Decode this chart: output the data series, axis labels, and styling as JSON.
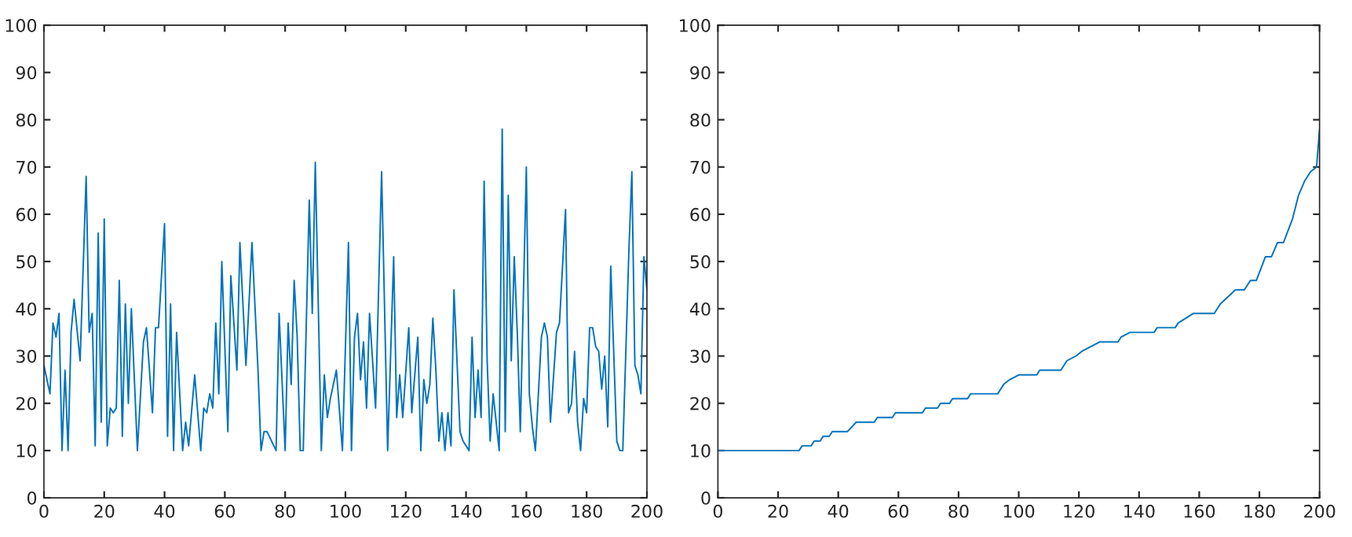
{
  "chart_data": [
    {
      "type": "line",
      "color": "#0072bd",
      "xlim": [
        0,
        200
      ],
      "ylim": [
        0,
        100
      ],
      "xticks": [
        0,
        20,
        40,
        60,
        80,
        100,
        120,
        140,
        160,
        180,
        200
      ],
      "yticks": [
        0,
        10,
        20,
        30,
        40,
        50,
        60,
        70,
        80,
        90,
        100
      ],
      "x": [
        0,
        2,
        3,
        4,
        5,
        6,
        7,
        8,
        9,
        10,
        12,
        14,
        15,
        16,
        17,
        18,
        19,
        20,
        21,
        22,
        23,
        24,
        25,
        26,
        27,
        28,
        29,
        31,
        33,
        34,
        36,
        37,
        38,
        40,
        41,
        42,
        43,
        44,
        46,
        47,
        48,
        50,
        52,
        53,
        54,
        55,
        56,
        57,
        58,
        59,
        61,
        62,
        64,
        65,
        67,
        69,
        71,
        72,
        73,
        74,
        77,
        78,
        80,
        81,
        82,
        83,
        84,
        85,
        86,
        88,
        89,
        90,
        92,
        93,
        94,
        95,
        97,
        99,
        101,
        102,
        103,
        104,
        105,
        106,
        107,
        108,
        110,
        112,
        114,
        116,
        117,
        118,
        119,
        121,
        122,
        124,
        125,
        126,
        127,
        128,
        129,
        130,
        131,
        132,
        133,
        134,
        135,
        136,
        138,
        139,
        141,
        142,
        143,
        144,
        145,
        146,
        147,
        148,
        149,
        151,
        152,
        153,
        154,
        155,
        156,
        157,
        158,
        160,
        161,
        162,
        163,
        164,
        165,
        166,
        167,
        168,
        170,
        171,
        173,
        174,
        175,
        176,
        177,
        178,
        179,
        180,
        181,
        182,
        183,
        184,
        185,
        186,
        187,
        188,
        190,
        191,
        192,
        194,
        195,
        196,
        197,
        198,
        199,
        200
      ],
      "values": [
        28,
        22,
        37,
        34,
        39,
        10,
        27,
        10,
        35,
        42,
        29,
        68,
        35,
        39,
        11,
        56,
        16,
        59,
        11,
        19,
        18,
        19,
        46,
        13,
        41,
        20,
        40,
        10,
        33,
        36,
        18,
        36,
        36,
        58,
        13,
        41,
        10,
        35,
        10,
        16,
        11,
        26,
        10,
        19,
        18,
        22,
        19,
        37,
        22,
        50,
        14,
        47,
        27,
        54,
        28,
        54,
        27,
        10,
        14,
        14,
        10,
        39,
        10,
        37,
        24,
        46,
        34,
        10,
        10,
        63,
        39,
        71,
        10,
        26,
        17,
        21,
        27,
        10,
        54,
        10,
        34,
        39,
        25,
        33,
        19,
        39,
        19,
        69,
        10,
        51,
        17,
        26,
        17,
        36,
        18,
        34,
        10,
        25,
        20,
        24,
        38,
        27,
        12,
        18,
        10,
        18,
        11,
        44,
        14,
        12,
        10,
        34,
        17,
        27,
        17,
        67,
        29,
        12,
        22,
        10,
        78,
        14,
        64,
        29,
        51,
        35,
        14,
        70,
        22,
        15,
        10,
        22,
        34,
        37,
        34,
        16,
        35,
        37,
        61,
        18,
        20,
        31,
        16,
        10,
        21,
        18,
        36,
        36,
        32,
        31,
        23,
        30,
        15,
        49,
        12,
        10,
        10,
        52,
        69,
        28,
        26,
        22,
        51,
        44
      ]
    },
    {
      "type": "line",
      "color": "#0072bd",
      "xlim": [
        0,
        200
      ],
      "ylim": [
        0,
        100
      ],
      "xticks": [
        0,
        20,
        40,
        60,
        80,
        100,
        120,
        140,
        160,
        180,
        200
      ],
      "yticks": [
        0,
        10,
        20,
        30,
        40,
        50,
        60,
        70,
        80,
        90,
        100
      ],
      "x": [
        0,
        27,
        28,
        31,
        32,
        34,
        35,
        37,
        38,
        43,
        46,
        52,
        53,
        58,
        59,
        68,
        69,
        73,
        74,
        77,
        78,
        83,
        84,
        93,
        95,
        97,
        100,
        106,
        107,
        114,
        116,
        119,
        121,
        127,
        133,
        134,
        137,
        145,
        146,
        152,
        153,
        158,
        165,
        167,
        172,
        175,
        177,
        179,
        182,
        184,
        186,
        188,
        191,
        193,
        195,
        197,
        199,
        200
      ],
      "values": [
        10,
        10,
        11,
        11,
        12,
        12,
        13,
        13,
        14,
        14,
        16,
        16,
        17,
        17,
        18,
        18,
        19,
        19,
        20,
        20,
        21,
        21,
        22,
        22,
        24,
        25,
        26,
        26,
        27,
        27,
        29,
        30,
        31,
        33,
        33,
        34,
        35,
        35,
        36,
        36,
        37,
        39,
        39,
        41,
        44,
        44,
        46,
        46,
        51,
        51,
        54,
        54,
        59,
        64,
        67,
        69,
        70,
        78
      ]
    }
  ]
}
